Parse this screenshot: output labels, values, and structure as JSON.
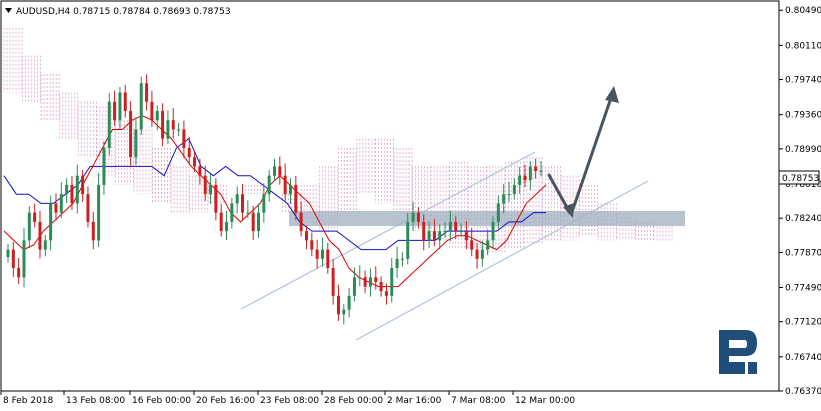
{
  "header": {
    "symbol_line": "AUDUSD,H4  0.78715 0.78784 0.78693 0.78753"
  },
  "colors": {
    "bull_candle": "#2e8b57",
    "bear_candle": "#cc1f1f",
    "tenkan": "#e00000",
    "kijun": "#1010cc",
    "kumo_bear": "#d9a0c8",
    "kumo_bull": "#f0a060",
    "channel": "#b0c4de",
    "support_zone": "#9fb0c0",
    "arrow": "#4a5561",
    "logo": "#1f4e7a"
  },
  "icons": {
    "menu_triangle": "menu-triangle-icon",
    "logo": "roboforex-logo-icon"
  },
  "chart_data": {
    "type": "candlestick",
    "title": "AUDUSD,H4",
    "timeframe": "H4",
    "last_price": "0.78753",
    "ohlc_header": {
      "open": 0.78715,
      "high": 0.78784,
      "low": 0.78693,
      "close": 0.78753
    },
    "ylim": [
      0.7637,
      0.8059
    ],
    "y_ticks": [
      "0.80490",
      "0.80110",
      "0.79740",
      "0.79360",
      "0.78990",
      "0.78610",
      "0.78240",
      "0.77870",
      "0.77490",
      "0.77120",
      "0.76740",
      "0.76370"
    ],
    "x_ticks": [
      "8 Feb 2018",
      "13 Feb 08:00",
      "16 Feb 00:00",
      "20 Feb 16:00",
      "23 Feb 08:00",
      "28 Feb 00:00",
      "2 Mar 16:00",
      "7 Mar 08:00",
      "12 Mar 00:00"
    ],
    "bars_visible": 110,
    "series": [
      {
        "kind": "price",
        "points": [
          0.779,
          0.777,
          0.776,
          0.78,
          0.783,
          0.782,
          0.779,
          0.78,
          0.784,
          0.783,
          0.785,
          0.786,
          0.784,
          0.787,
          0.785,
          0.782,
          0.78,
          0.786,
          0.79,
          0.795,
          0.793,
          0.796,
          0.794,
          0.789,
          0.792,
          0.797,
          0.795,
          0.793,
          0.794,
          0.791,
          0.793,
          0.792,
          0.792,
          0.79,
          0.789,
          0.788,
          0.787,
          0.785,
          0.786,
          0.783,
          0.781,
          0.782,
          0.784,
          0.785,
          0.783,
          0.783,
          0.781,
          0.783,
          0.785,
          0.787,
          0.788,
          0.787,
          0.785,
          0.786,
          0.783,
          0.781,
          0.78,
          0.779,
          0.778,
          0.779,
          0.777,
          0.774,
          0.772,
          0.7725,
          0.774,
          0.776,
          0.776,
          0.775,
          0.776,
          0.7755,
          0.7745,
          0.774,
          0.777,
          0.778,
          0.778,
          0.782,
          0.783,
          0.782,
          0.78,
          0.781,
          0.78,
          0.781,
          0.781,
          0.782,
          0.781,
          0.781,
          0.78,
          0.779,
          0.778,
          0.779,
          0.78,
          0.782,
          0.784,
          0.785,
          0.785,
          0.786,
          0.787,
          0.7865,
          0.788,
          0.7875,
          0.7875
        ]
      },
      {
        "kind": "tenkan",
        "points": [
          0.781,
          0.78,
          0.779,
          0.7795,
          0.781,
          0.782,
          0.783,
          0.784,
          0.786,
          0.788,
          0.79,
          0.792,
          0.792,
          0.793,
          0.7935,
          0.793,
          0.792,
          0.791,
          0.7895,
          0.788,
          0.787,
          0.786,
          0.785,
          0.783,
          0.782,
          0.783,
          0.784,
          0.786,
          0.787,
          0.786,
          0.785,
          0.784,
          0.782,
          0.78,
          0.779,
          0.777,
          0.776,
          0.7755,
          0.775,
          0.775,
          0.775,
          0.776,
          0.777,
          0.778,
          0.779,
          0.78,
          0.7805,
          0.7805,
          0.78,
          0.7795,
          0.779,
          0.78,
          0.782,
          0.784,
          0.785,
          0.786
        ]
      },
      {
        "kind": "kijun",
        "points": [
          0.787,
          0.785,
          0.785,
          0.784,
          0.784,
          0.785,
          0.786,
          0.788,
          0.788,
          0.788,
          0.788,
          0.788,
          0.788,
          0.787,
          0.79,
          0.791,
          0.788,
          0.787,
          0.788,
          0.787,
          0.787,
          0.786,
          0.785,
          0.784,
          0.782,
          0.781,
          0.781,
          0.781,
          0.78,
          0.779,
          0.779,
          0.779,
          0.78,
          0.78,
          0.78,
          0.78,
          0.781,
          0.781,
          0.781,
          0.781,
          0.781,
          0.782,
          0.782,
          0.783,
          0.783
        ]
      }
    ],
    "annotations": [
      {
        "type": "rising_channel"
      },
      {
        "type": "support_zone",
        "price": 0.7826
      },
      {
        "type": "forecast_arrows",
        "from": 0.7876,
        "via": 0.7825,
        "to": 0.797
      }
    ]
  }
}
